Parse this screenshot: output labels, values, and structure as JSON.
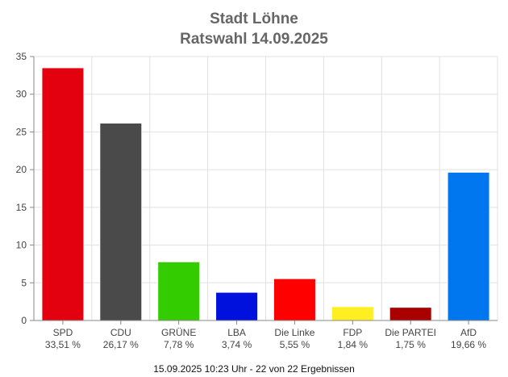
{
  "chart_data": {
    "type": "bar",
    "title": "Stadt Löhne",
    "subtitle": "Ratswahl 14.09.2025",
    "ylim": [
      0,
      35
    ],
    "yticks": [
      0,
      5,
      10,
      15,
      20,
      25,
      30,
      35
    ],
    "grid": true,
    "categories": [
      "SPD",
      "CDU",
      "GRÜNE",
      "LBA",
      "Die Linke",
      "FDP",
      "Die PARTEI",
      "AfD"
    ],
    "values": [
      33.51,
      26.17,
      7.78,
      3.74,
      5.55,
      1.84,
      1.75,
      19.66
    ],
    "value_labels": [
      "33,51 %",
      "26,17 %",
      "7,78 %",
      "3,74 %",
      "5,55 %",
      "1,84 %",
      "1,75 %",
      "19,66 %"
    ],
    "colors": [
      "#e3000f",
      "#4a4a4a",
      "#33cc00",
      "#0011dd",
      "#ff0000",
      "#ffee22",
      "#aa0000",
      "#0077ee"
    ]
  },
  "footer": "15.09.2025 10:23 Uhr - 22 von 22 Ergebnissen"
}
